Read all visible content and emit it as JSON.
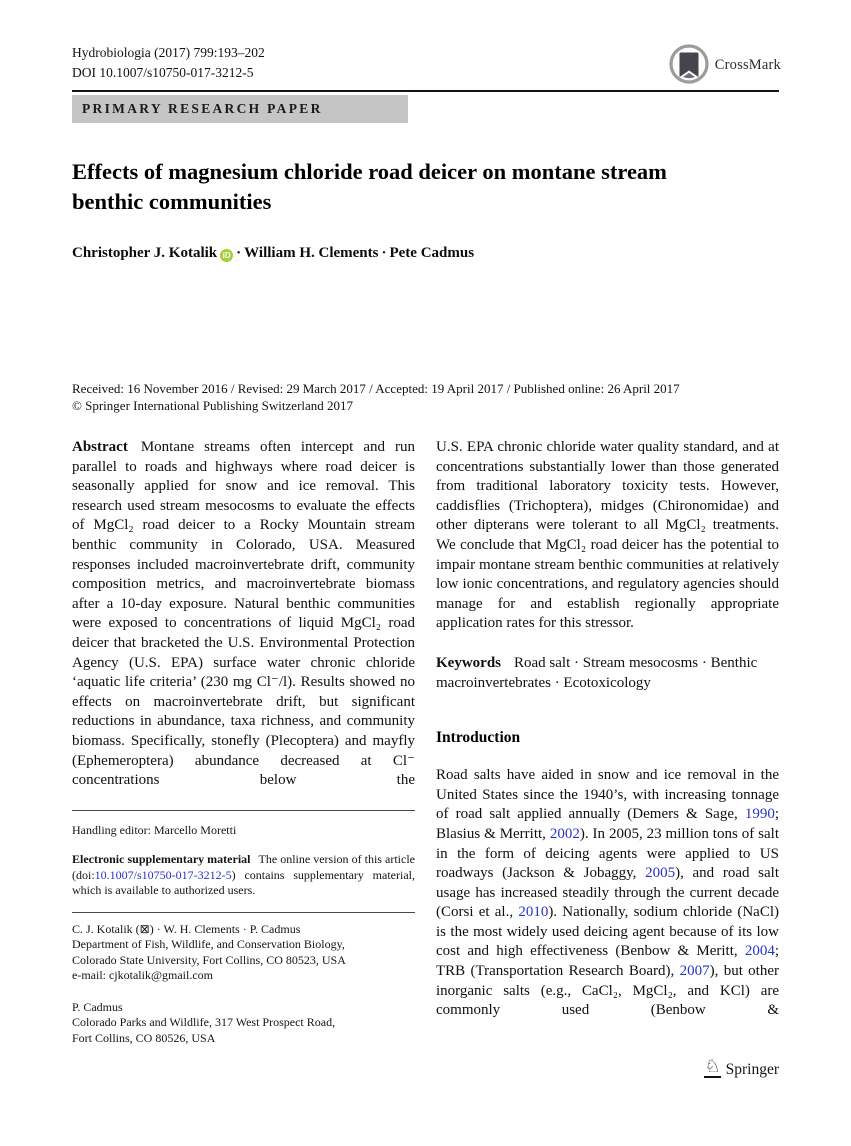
{
  "header": {
    "journal_ref": "Hydrobiologia (2017) 799:193–202",
    "doi": "DOI 10.1007/s10750-017-3212-5",
    "crossmark": "CrossMark",
    "category": "PRIMARY RESEARCH PAPER"
  },
  "title": "Effects of magnesium chloride road deicer on montane stream benthic communities",
  "byline": {
    "author1": "Christopher J. Kotalik",
    "orcid": "iD",
    "sep": "·",
    "author2": "William H. Clements",
    "author3": "Pete Cadmus"
  },
  "dates": {
    "history": "Received: 16 November 2016 / Revised: 29 March 2017 / Accepted: 19 April 2017 / Published online: 26 April 2017",
    "copyright": "© Springer International Publishing Switzerland 2017"
  },
  "abstract": {
    "part1_segments": [
      {
        "t": "Abstract",
        "c": "b lead",
        "n": "abstract-label"
      },
      {
        "t": "Montane streams often intercept and run parallel to roads and highways where road deicer is seasonally applied for snow and ice removal. This research used stream mesocosms to evaluate the effects of MgCl₂ road deicer to a Rocky Mountain stream benthic community in Colorado, USA. Measured responses included macroinvertebrate drift, community composition metrics, and macroinvertebrate biomass after a 10-day exposure. Natural benthic communities were exposed to concentrations of liquid MgCl₂ road deicer that bracketed the U.S. Environmental Protection Agency (U.S. EPA) surface water chronic chloride ‘aquatic life criteria’ (230 mg Cl⁻/l). Results showed no effects on macroinvertebrate drift, but significant reductions in abundance, taxa richness, and community biomass. Specifically, stonefly (Plecoptera) and mayfly (Ephemeroptera) abundance decreased at Cl⁻ concentrations below the",
        "n": "abstract-text-part1"
      }
    ],
    "part2": "U.S. EPA chronic chloride water quality standard, and at concentrations substantially lower than those generated from traditional laboratory toxicity tests. However, caddisflies (Trichoptera), midges (Chironomidae) and other dipterans were tolerant to all MgCl₂ treatments. We conclude that MgCl₂ road deicer has the potential to impair montane stream benthic communities at relatively low ionic concentrations, and regulatory agencies should manage for and establish regionally appropriate application rates for this stressor."
  },
  "keywords_segments": [
    {
      "t": "Keywords",
      "c": "b lead",
      "n": "keywords-label"
    },
    {
      "t": "Road salt · Stream mesocosms · Benthic macroinvertebrates · Ecotoxicology",
      "n": "keywords-list"
    }
  ],
  "sections": {
    "introduction": {
      "heading": "Introduction",
      "segments": [
        {
          "t": "Road salts have aided in snow and ice removal in the United States since the 1940’s, with increasing tonnage of road salt applied annually (Demers & Sage, ",
          "n": "intro-text"
        },
        {
          "t": "1990",
          "c": "link",
          "n": "citation-year-link"
        },
        {
          "t": "; Blasius & Merritt, ",
          "n": "intro-text"
        },
        {
          "t": "2002",
          "c": "link",
          "n": "citation-year-link"
        },
        {
          "t": "). In 2005, 23 million tons of salt in the form of deicing agents were applied to US roadways (Jackson & Jobaggy, ",
          "n": "intro-text"
        },
        {
          "t": "2005",
          "c": "link",
          "n": "citation-year-link"
        },
        {
          "t": "), and road salt usage has increased steadily through the current decade (Corsi et al., ",
          "n": "intro-text"
        },
        {
          "t": "2010",
          "c": "link",
          "n": "citation-year-link"
        },
        {
          "t": "). Nationally, sodium chloride (NaCl) is the most widely used deicing agent because of its low cost and high effectiveness (Benbow & Meritt, ",
          "n": "intro-text"
        },
        {
          "t": "2004",
          "c": "link",
          "n": "citation-year-link"
        },
        {
          "t": "; TRB (Transportation Research Board), ",
          "n": "intro-text"
        },
        {
          "t": "2007",
          "c": "link",
          "n": "citation-year-link"
        },
        {
          "t": "), but other inorganic salts (e.g., CaCl₂, MgCl₂, and KCl) are commonly used (Benbow &",
          "n": "intro-text"
        }
      ]
    }
  },
  "footnotes": {
    "handling_editor": "Handling editor: Marcello Moretti",
    "esm_segments": [
      {
        "t": "Electronic supplementary material",
        "c": "b lead2",
        "n": "esm-label"
      },
      {
        "t": "The online version of this article (doi:",
        "n": "esm-text"
      },
      {
        "t": "10.1007/s10750-017-3212-5",
        "c": "link",
        "n": "doi-link"
      },
      {
        "t": ") contains supplementary material, which is available to authorized users.",
        "n": "esm-text"
      }
    ],
    "affiliation1": [
      "C. J. Kotalik (⊠) · W. H. Clements · P. Cadmus",
      "Department of Fish, Wildlife, and Conservation Biology,",
      "Colorado State University, Fort Collins, CO 80523, USA",
      "e-mail: cjkotalik@gmail.com"
    ],
    "affiliation2": [
      "P. Cadmus",
      "Colorado Parks and Wildlife, 317 West Prospect Road,",
      "Fort Collins, CO 80526, USA"
    ]
  },
  "footer": {
    "knight": "♘",
    "publisher": "Springer"
  },
  "colors": {
    "link_blue": "#2633cc",
    "orcid_green": "#a6ce39",
    "category_bg": "#c5c5c5"
  }
}
